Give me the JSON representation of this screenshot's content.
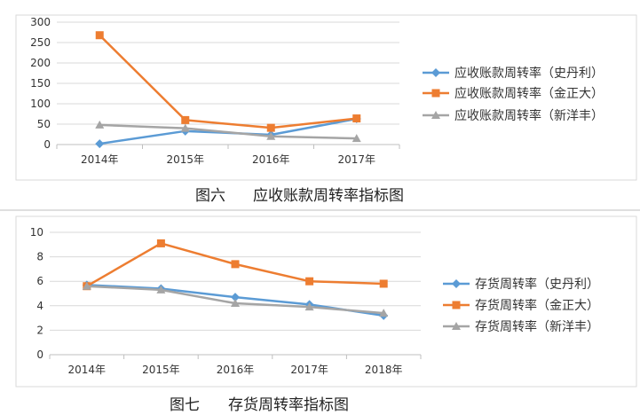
{
  "charts": [
    {
      "caption_num": "图六",
      "caption_text": "应收账款周转率指标图",
      "chart_data": {
        "type": "line",
        "categories": [
          "2014年",
          "2015年",
          "2016年",
          "2017年"
        ],
        "ylim": [
          0,
          300
        ],
        "yticks": [
          0,
          50,
          100,
          150,
          200,
          250,
          300
        ],
        "grid": true,
        "legend": "right",
        "series": [
          {
            "name": "应收账款周转率（史丹利）",
            "color": "#5b9bd5",
            "marker": "diamond",
            "values": [
              2,
              33,
              24,
              63
            ]
          },
          {
            "name": "应收账款周转率（金正大）",
            "color": "#ed7d31",
            "marker": "square",
            "values": [
              268,
              60,
              41,
              64
            ]
          },
          {
            "name": "应收账款周转率（新洋丰）",
            "color": "#a5a5a5",
            "marker": "triangle",
            "values": [
              48,
              40,
              20,
              15
            ]
          }
        ]
      }
    },
    {
      "caption_num": "图七",
      "caption_text": "存货周转率指标图",
      "chart_data": {
        "type": "line",
        "categories": [
          "2014年",
          "2015年",
          "2016年",
          "2017年",
          "2018年"
        ],
        "ylim": [
          0,
          10
        ],
        "yticks": [
          0,
          2,
          4,
          6,
          8,
          10
        ],
        "grid": true,
        "legend": "right",
        "series": [
          {
            "name": "存货周转率（史丹利）",
            "color": "#5b9bd5",
            "marker": "diamond",
            "values": [
              5.7,
              5.4,
              4.7,
              4.1,
              3.2
            ]
          },
          {
            "name": "存货周转率（金正大）",
            "color": "#ed7d31",
            "marker": "square",
            "values": [
              5.6,
              9.1,
              7.4,
              6.0,
              5.8
            ]
          },
          {
            "name": "存货周转率（新洋丰）",
            "color": "#a5a5a5",
            "marker": "triangle",
            "values": [
              5.6,
              5.3,
              4.2,
              3.9,
              3.4
            ]
          }
        ]
      }
    }
  ]
}
